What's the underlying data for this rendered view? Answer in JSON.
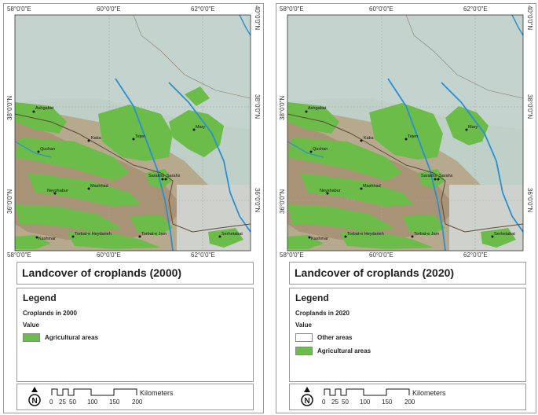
{
  "colors": {
    "agri": "#6cbc49",
    "other": "#ffffff",
    "river": "#2a8fd0",
    "border": "#5a4a3a",
    "water": "#a8c0c6"
  },
  "coords": {
    "top": [
      "58°0'0\"E",
      "60°0'0\"E",
      "62°0'0\"E"
    ],
    "bottom": [
      "58°0'0\"E",
      "60°0'0\"E",
      "62°0'0\"E"
    ],
    "left": [
      "38°0'0\"N",
      "36°0'0\"N"
    ],
    "right": [
      "40°0'0\"N",
      "38°0'0\"N",
      "36°0'0\"N"
    ]
  },
  "cities": [
    "Ashgabat",
    "Kaka",
    "Tejen",
    "Mary",
    "Quchan",
    "Mashhad",
    "Sarakhs",
    "Sarahs",
    "Neyshabur",
    "Kashmar",
    "Torbat-e Heydarieh",
    "Torbat-e Jam",
    "Serhetabat"
  ],
  "panels": [
    {
      "title": "Landcover of croplands (2000)",
      "legend_title": "Legend",
      "legend_subtitle": "Croplands in 2000",
      "value_label": "Value",
      "items": [
        {
          "label": "Agricultural areas",
          "swatch": "agri"
        }
      ]
    },
    {
      "title": "Landcover of croplands (2020)",
      "legend_title": "Legend",
      "legend_subtitle": "Croplands in 2020",
      "value_label": "Value",
      "items": [
        {
          "label": "Other areas",
          "swatch": "other"
        },
        {
          "label": "Agricultural areas",
          "swatch": "agri"
        }
      ]
    }
  ],
  "scale": {
    "unit": "Kilometers",
    "ticks": [
      "0",
      "25",
      "50",
      "100",
      "150",
      "200"
    ],
    "north": "N"
  }
}
